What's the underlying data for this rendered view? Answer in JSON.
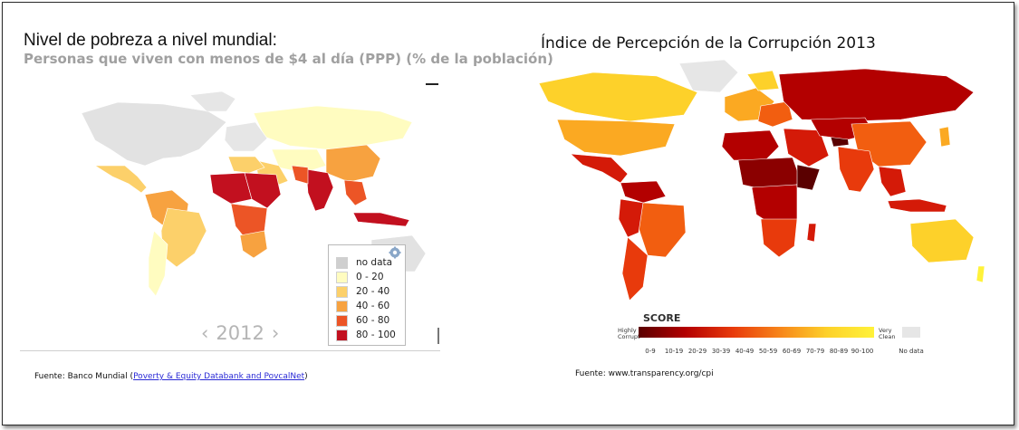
{
  "left": {
    "title": "Nivel de pobreza a nivel mundial:",
    "subtitle": "Personas que viven con menos de $4 al día (PPP) (% de la población)",
    "legend": [
      {
        "label": "no data",
        "color": "#cfcfcf"
      },
      {
        "label": "0 - 20",
        "color": "#fffcc0"
      },
      {
        "label": "20 - 40",
        "color": "#fcd06a"
      },
      {
        "label": "40 - 60",
        "color": "#f7a240"
      },
      {
        "label": "60 - 80",
        "color": "#ec5526"
      },
      {
        "label": "80 - 100",
        "color": "#c2101f"
      }
    ],
    "year_nav": {
      "prev": "‹",
      "year": "2012",
      "next": "›"
    },
    "source_prefix": "Fuente: Banco Mundial (",
    "source_link": "Poverty & Equity Databank and PovcalNet",
    "source_suffix": ")",
    "gear_icon": "gear-icon"
  },
  "right": {
    "title": "Índice de Percepción de la Corrupción 2013",
    "score_title": "SCORE",
    "low_label_1": "Highly",
    "low_label_2": "Corrupt",
    "high_label_1": "Very",
    "high_label_2": "Clean",
    "ticks": [
      "0-9",
      "10-19",
      "20-29",
      "30-39",
      "40-49",
      "50-59",
      "60-69",
      "70-79",
      "80-89",
      "90-100"
    ],
    "no_data_label": "No data",
    "scale_colors": [
      "#5a0000",
      "#8b0000",
      "#b30000",
      "#d41a08",
      "#e83a0c",
      "#f25e10",
      "#f7851a",
      "#fba922",
      "#fdd12a",
      "#fff23a"
    ],
    "no_data_color": "#e6e6e6",
    "source": "Fuente: www.transparency.org/cpi"
  }
}
